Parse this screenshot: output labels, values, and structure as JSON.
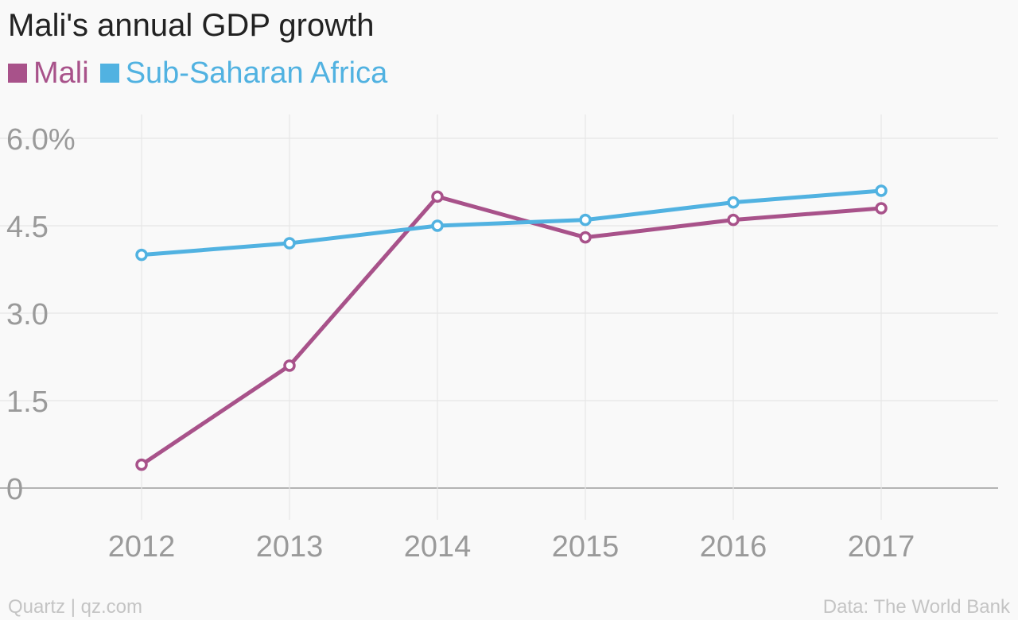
{
  "title": "Mali's annual GDP growth",
  "footer": {
    "source_left": "Quartz | qz.com",
    "source_right": "Data: The World Bank"
  },
  "chart_data": {
    "type": "line",
    "title": "Mali's annual GDP growth",
    "xlabel": "",
    "ylabel": "",
    "x": [
      "2012",
      "2013",
      "2014",
      "2015",
      "2016",
      "2017"
    ],
    "series": [
      {
        "name": "Mali",
        "color": "#a8528a",
        "values": [
          0.4,
          2.1,
          5.0,
          4.3,
          4.6,
          4.8
        ]
      },
      {
        "name": "Sub-Saharan Africa",
        "color": "#51b2e1",
        "values": [
          4.0,
          4.2,
          4.5,
          4.6,
          4.9,
          5.1
        ]
      }
    ],
    "ylim": [
      0,
      6
    ],
    "yticks": [
      0,
      1.5,
      3.0,
      4.5,
      6.0
    ],
    "ytick_labels": [
      "0",
      "1.5",
      "3.0",
      "4.5",
      "6.0%"
    ],
    "grid": true,
    "legend": "top-left",
    "markers": "hollow-circle"
  }
}
